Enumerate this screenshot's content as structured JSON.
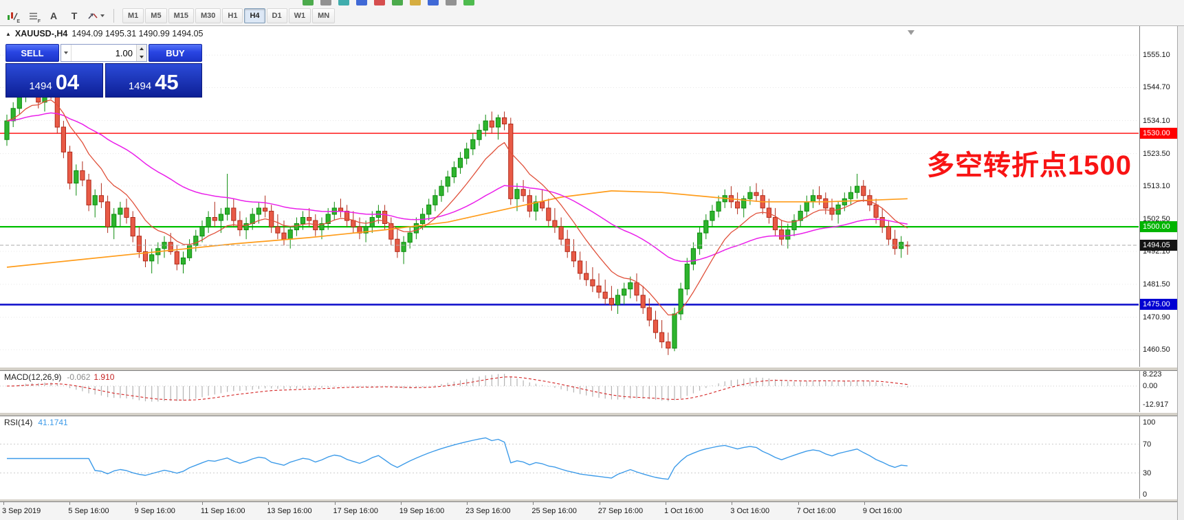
{
  "toolbar": {
    "letter_a": "A",
    "letter_t": "T",
    "sub_e": "E",
    "sub_f": "F",
    "partial_icon_colors": [
      "#2e9e2e",
      "#808080",
      "#20a0a0",
      "#2050d0",
      "#d03030",
      "#2e9e2e",
      "#d0a020",
      "#2050d0",
      "#808080",
      "#30b030"
    ],
    "timeframes": [
      {
        "label": "M1",
        "active": false
      },
      {
        "label": "M5",
        "active": false
      },
      {
        "label": "M15",
        "active": false
      },
      {
        "label": "M30",
        "active": false
      },
      {
        "label": "H1",
        "active": false
      },
      {
        "label": "H4",
        "active": true
      },
      {
        "label": "D1",
        "active": false
      },
      {
        "label": "W1",
        "active": false
      },
      {
        "label": "MN",
        "active": false
      }
    ]
  },
  "chart": {
    "header": {
      "expand_marker": "▲",
      "symbol": "XAUUSD-,H4",
      "ohlc": "1494.09 1495.31 1490.99 1494.05"
    },
    "annotation": {
      "text": "多空转折点1500",
      "color": "#f81414"
    },
    "price_axis": [
      "1555.10",
      "1544.70",
      "1534.10",
      "1523.50",
      "1513.10",
      "1502.50",
      "1492.10",
      "1481.50",
      "1470.90",
      "1460.50"
    ],
    "price_badges": [
      {
        "text": "1530.00",
        "value": 1530.0,
        "color": "#ff0000"
      },
      {
        "text": "1500.00",
        "value": 1500.0,
        "color": "#00b400"
      },
      {
        "text": "1494.05",
        "value": 1494.05,
        "color": "#141414"
      },
      {
        "text": "1475.00",
        "value": 1475.0,
        "color": "#0000d2"
      }
    ]
  },
  "trade_panel": {
    "sell_label": "SELL",
    "buy_label": "BUY",
    "volume": "1.00",
    "sell_price_main": "1494",
    "sell_price_pips": "04",
    "buy_price_main": "1494",
    "buy_price_pips": "45"
  },
  "indicators": {
    "macd": {
      "title": "MACD(12,26,9)",
      "value_main": "-0.062",
      "value_signal": "1.910",
      "axis": [
        {
          "text": "8.223",
          "value": 8.223
        },
        {
          "text": "0.00",
          "value": 0
        },
        {
          "text": "-12.917",
          "value": -12.917
        }
      ]
    },
    "rsi": {
      "title": "RSI(14)",
      "value": "41.1741",
      "axis": [
        {
          "text": "100",
          "value": 100
        },
        {
          "text": "70",
          "value": 70
        },
        {
          "text": "30",
          "value": 30
        },
        {
          "text": "0",
          "value": 0
        }
      ]
    }
  },
  "chart_data": {
    "type": "candlestick",
    "symbol": "XAUUSD",
    "timeframe": "H4",
    "current_price": 1494.05,
    "price_range": [
      1455,
      1564
    ],
    "levels": [
      {
        "value": 1530.0,
        "color": "#ff0000",
        "width": 1.4
      },
      {
        "value": 1500.0,
        "color": "#00c000",
        "width": 2.2
      },
      {
        "value": 1475.0,
        "color": "#1212cc",
        "width": 2.6
      }
    ],
    "ma_fast_period": 10,
    "ma_magenta_period": 40,
    "ma_orange_points": [
      [
        0,
        1487
      ],
      [
        12,
        1489.5
      ],
      [
        24,
        1492
      ],
      [
        36,
        1494.5
      ],
      [
        48,
        1496.5
      ],
      [
        60,
        1499
      ],
      [
        70,
        1501.5
      ],
      [
        80,
        1506
      ],
      [
        88,
        1509.5
      ],
      [
        96,
        1511.5
      ],
      [
        104,
        1511
      ],
      [
        112,
        1509.5
      ],
      [
        120,
        1508
      ],
      [
        130,
        1508
      ],
      [
        137,
        1508.5
      ],
      [
        143,
        1509
      ]
    ],
    "macd_params": [
      12,
      26,
      9
    ],
    "rsi_period": 14,
    "time_labels": [
      "3 Sep 2019",
      "5 Sep 16:00",
      "9 Sep 16:00",
      "11 Sep 16:00",
      "13 Sep 16:00",
      "17 Sep 16:00",
      "19 Sep 16:00",
      "23 Sep 16:00",
      "25 Sep 16:00",
      "27 Sep 16:00",
      "1 Oct 16:00",
      "3 Oct 16:00",
      "7 Oct 16:00",
      "9 Oct 16:00"
    ],
    "candles": [
      [
        1528,
        1536,
        1526,
        1534
      ],
      [
        1534,
        1540,
        1532,
        1538
      ],
      [
        1538,
        1544,
        1536,
        1542
      ],
      [
        1542,
        1547,
        1540,
        1546
      ],
      [
        1546,
        1548,
        1542,
        1544
      ],
      [
        1544,
        1547,
        1538,
        1540
      ],
      [
        1540,
        1546,
        1537,
        1545
      ],
      [
        1545,
        1547.5,
        1541,
        1543
      ],
      [
        1543,
        1545,
        1530,
        1532
      ],
      [
        1532,
        1534,
        1522,
        1524
      ],
      [
        1524,
        1526,
        1512,
        1514
      ],
      [
        1514,
        1520,
        1510,
        1518
      ],
      [
        1518,
        1521,
        1513,
        1515
      ],
      [
        1515,
        1517,
        1505,
        1507
      ],
      [
        1507,
        1512,
        1503,
        1510
      ],
      [
        1510,
        1514,
        1506,
        1508
      ],
      [
        1508,
        1510,
        1498,
        1500
      ],
      [
        1500,
        1506,
        1496,
        1504
      ],
      [
        1504,
        1508,
        1500,
        1506
      ],
      [
        1506,
        1509,
        1501,
        1503
      ],
      [
        1503,
        1505,
        1495,
        1497
      ],
      [
        1497,
        1500,
        1490,
        1492
      ],
      [
        1492,
        1496,
        1487,
        1489
      ],
      [
        1489,
        1493,
        1485,
        1491
      ],
      [
        1491,
        1495,
        1488,
        1493
      ],
      [
        1493,
        1497,
        1490,
        1495
      ],
      [
        1495,
        1498,
        1491,
        1492
      ],
      [
        1492,
        1494,
        1486,
        1488
      ],
      [
        1488,
        1492,
        1485,
        1490
      ],
      [
        1490,
        1496,
        1489,
        1494
      ],
      [
        1494,
        1499,
        1492,
        1497
      ],
      [
        1497,
        1502,
        1495,
        1500
      ],
      [
        1500,
        1505,
        1498,
        1503
      ],
      [
        1503,
        1508,
        1500,
        1502
      ],
      [
        1502,
        1506,
        1498,
        1504
      ],
      [
        1504,
        1517,
        1502,
        1506
      ],
      [
        1506,
        1509,
        1500,
        1502
      ],
      [
        1502,
        1505,
        1497,
        1499
      ],
      [
        1499,
        1503,
        1496,
        1501
      ],
      [
        1501,
        1506,
        1499,
        1504
      ],
      [
        1504,
        1508,
        1501,
        1506
      ],
      [
        1506,
        1510,
        1503,
        1505
      ],
      [
        1505,
        1507,
        1498,
        1500
      ],
      [
        1500,
        1504,
        1496,
        1498
      ],
      [
        1498,
        1502,
        1494,
        1496
      ],
      [
        1496,
        1500,
        1493,
        1499
      ],
      [
        1499,
        1503,
        1497,
        1501
      ],
      [
        1501,
        1505,
        1499,
        1503
      ],
      [
        1503,
        1506,
        1500,
        1502
      ],
      [
        1502,
        1504,
        1497,
        1499
      ],
      [
        1499,
        1503,
        1496,
        1501
      ],
      [
        1501,
        1506,
        1499,
        1504
      ],
      [
        1504,
        1508,
        1502,
        1506
      ],
      [
        1506,
        1509,
        1503,
        1505
      ],
      [
        1505,
        1507,
        1500,
        1502
      ],
      [
        1502,
        1505,
        1498,
        1500
      ],
      [
        1500,
        1503,
        1496,
        1498
      ],
      [
        1498,
        1502,
        1495,
        1500
      ],
      [
        1500,
        1505,
        1498,
        1503
      ],
      [
        1503,
        1507,
        1501,
        1505
      ],
      [
        1505,
        1507,
        1499,
        1501
      ],
      [
        1501,
        1503,
        1494,
        1496
      ],
      [
        1496,
        1499,
        1490,
        1492
      ],
      [
        1492,
        1497,
        1488,
        1495
      ],
      [
        1495,
        1500,
        1493,
        1498
      ],
      [
        1498,
        1503,
        1496,
        1501
      ],
      [
        1501,
        1506,
        1499,
        1504
      ],
      [
        1504,
        1509,
        1502,
        1507
      ],
      [
        1507,
        1512,
        1505,
        1510
      ],
      [
        1510,
        1515,
        1508,
        1513
      ],
      [
        1513,
        1518,
        1511,
        1516
      ],
      [
        1516,
        1521,
        1514,
        1519
      ],
      [
        1519,
        1524,
        1517,
        1522
      ],
      [
        1522,
        1527,
        1520,
        1525
      ],
      [
        1525,
        1530,
        1523,
        1528
      ],
      [
        1528,
        1533,
        1526,
        1531
      ],
      [
        1531,
        1536,
        1529,
        1534
      ],
      [
        1534,
        1537,
        1530,
        1532
      ],
      [
        1532,
        1536,
        1528,
        1535
      ],
      [
        1535,
        1537,
        1531,
        1533
      ],
      [
        1533,
        1535,
        1507,
        1509
      ],
      [
        1509,
        1514,
        1505,
        1512
      ],
      [
        1512,
        1515,
        1508,
        1510
      ],
      [
        1510,
        1512,
        1503,
        1505
      ],
      [
        1505,
        1510,
        1502,
        1508
      ],
      [
        1508,
        1512,
        1505,
        1506
      ],
      [
        1506,
        1509,
        1500,
        1502
      ],
      [
        1502,
        1506,
        1498,
        1500
      ],
      [
        1500,
        1503,
        1494,
        1496
      ],
      [
        1496,
        1499,
        1490,
        1492
      ],
      [
        1492,
        1496,
        1487,
        1489
      ],
      [
        1489,
        1492,
        1483,
        1485
      ],
      [
        1485,
        1489,
        1481,
        1483
      ],
      [
        1483,
        1487,
        1479,
        1481
      ],
      [
        1481,
        1485,
        1477,
        1479
      ],
      [
        1479,
        1483,
        1475,
        1477
      ],
      [
        1477,
        1481,
        1473,
        1475
      ],
      [
        1475,
        1480,
        1472,
        1478
      ],
      [
        1478,
        1482,
        1475,
        1480
      ],
      [
        1480,
        1484,
        1477,
        1482
      ],
      [
        1482,
        1485,
        1476,
        1478
      ],
      [
        1478,
        1481,
        1472,
        1474
      ],
      [
        1474,
        1477,
        1468,
        1470
      ],
      [
        1470,
        1473,
        1464,
        1466
      ],
      [
        1466,
        1470,
        1461,
        1463
      ],
      [
        1463,
        1466,
        1458.8,
        1461
      ],
      [
        1461,
        1474,
        1460,
        1472
      ],
      [
        1472,
        1482,
        1470,
        1480
      ],
      [
        1480,
        1490,
        1478,
        1488
      ],
      [
        1488,
        1495,
        1486,
        1493
      ],
      [
        1493,
        1500,
        1491,
        1498
      ],
      [
        1498,
        1504,
        1496,
        1502
      ],
      [
        1502,
        1507,
        1500,
        1505
      ],
      [
        1505,
        1510,
        1503,
        1508
      ],
      [
        1508,
        1512,
        1506,
        1510
      ],
      [
        1510,
        1513,
        1506,
        1508
      ],
      [
        1508,
        1511,
        1504,
        1506
      ],
      [
        1506,
        1510,
        1503,
        1509
      ],
      [
        1509,
        1513,
        1507,
        1511
      ],
      [
        1511,
        1514,
        1508,
        1510
      ],
      [
        1510,
        1512,
        1504,
        1506
      ],
      [
        1506,
        1509,
        1501,
        1503
      ],
      [
        1503,
        1506,
        1497,
        1499
      ],
      [
        1499,
        1502,
        1494,
        1496
      ],
      [
        1496,
        1501,
        1493,
        1499
      ],
      [
        1499,
        1504,
        1497,
        1502
      ],
      [
        1502,
        1507,
        1500,
        1505
      ],
      [
        1505,
        1510,
        1503,
        1508
      ],
      [
        1508,
        1512,
        1506,
        1510
      ],
      [
        1510,
        1513,
        1507,
        1509
      ],
      [
        1509,
        1511,
        1504,
        1506
      ],
      [
        1506,
        1509,
        1502,
        1504
      ],
      [
        1504,
        1508,
        1501,
        1507
      ],
      [
        1507,
        1511,
        1505,
        1509
      ],
      [
        1509,
        1513,
        1507,
        1511
      ],
      [
        1511,
        1517,
        1509,
        1513
      ],
      [
        1513,
        1515,
        1508,
        1510
      ],
      [
        1510,
        1512,
        1505,
        1507
      ],
      [
        1507,
        1509,
        1501,
        1503
      ],
      [
        1503,
        1506,
        1498,
        1500
      ],
      [
        1500,
        1502,
        1494,
        1496
      ],
      [
        1496,
        1499,
        1491,
        1493
      ],
      [
        1493,
        1497,
        1490,
        1495
      ],
      [
        1494.09,
        1495.31,
        1490.99,
        1494.05
      ]
    ]
  }
}
